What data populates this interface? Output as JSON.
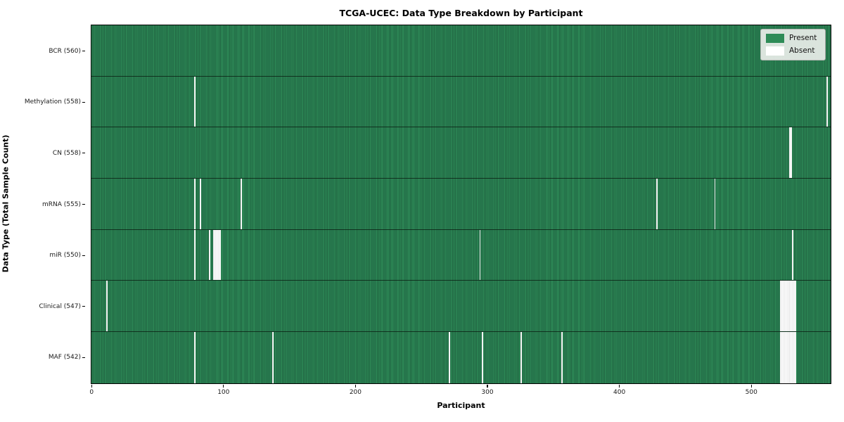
{
  "figure": {
    "title": "TCGA-UCEC: Data Type Breakdown by Participant",
    "xlabel": "Participant",
    "ylabel": "Data Type (Total Sample Count)"
  },
  "legend": {
    "position": "upper right",
    "items": [
      {
        "label": "Present",
        "color": "#2e8b57"
      },
      {
        "label": "Absent",
        "color": "#ffffff"
      }
    ]
  },
  "chart_data": {
    "type": "heatmap",
    "title": "TCGA-UCEC: Data Type Breakdown by Participant",
    "xlabel": "Participant",
    "ylabel": "Data Type (Total Sample Count)",
    "legend_position": "upper right",
    "grid": false,
    "n_participants": 560,
    "x_range": [
      0,
      560
    ],
    "x_ticks": [
      0,
      100,
      200,
      300,
      400,
      500
    ],
    "colors": {
      "present": "#2e8b57",
      "present_edge": "#1f6240",
      "absent": "#ffffff",
      "row_divider": "#14281c",
      "legend_bg": "#eaede9"
    },
    "rows": [
      {
        "data_type": "BCR",
        "label": "BCR (560)",
        "present_count": 560,
        "absent_participants": []
      },
      {
        "data_type": "Methylation",
        "label": "Methylation (558)",
        "present_count": 558,
        "absent_participants": [
          78,
          557
        ]
      },
      {
        "data_type": "CN",
        "label": "CN (558)",
        "present_count": 558,
        "absent_participants": [
          529,
          530
        ]
      },
      {
        "data_type": "mRNA",
        "label": "mRNA (555)",
        "present_count": 555,
        "absent_participants": [
          78,
          82,
          113,
          428,
          472
        ]
      },
      {
        "data_type": "miR",
        "label": "miR (550)",
        "present_count": 550,
        "absent_participants": [
          78,
          89,
          92,
          93,
          94,
          95,
          96,
          97,
          294,
          531
        ]
      },
      {
        "data_type": "Clinical",
        "label": "Clinical (547)",
        "present_count": 547,
        "absent_participants": [
          11,
          522,
          523,
          524,
          525,
          526,
          527,
          528,
          529,
          530,
          531,
          532,
          533
        ]
      },
      {
        "data_type": "MAF",
        "label": "MAF (542)",
        "present_count": 542,
        "absent_participants": [
          78,
          137,
          271,
          296,
          325,
          356,
          522,
          523,
          524,
          525,
          526,
          527,
          528,
          529,
          530,
          531,
          532,
          533
        ]
      }
    ]
  }
}
